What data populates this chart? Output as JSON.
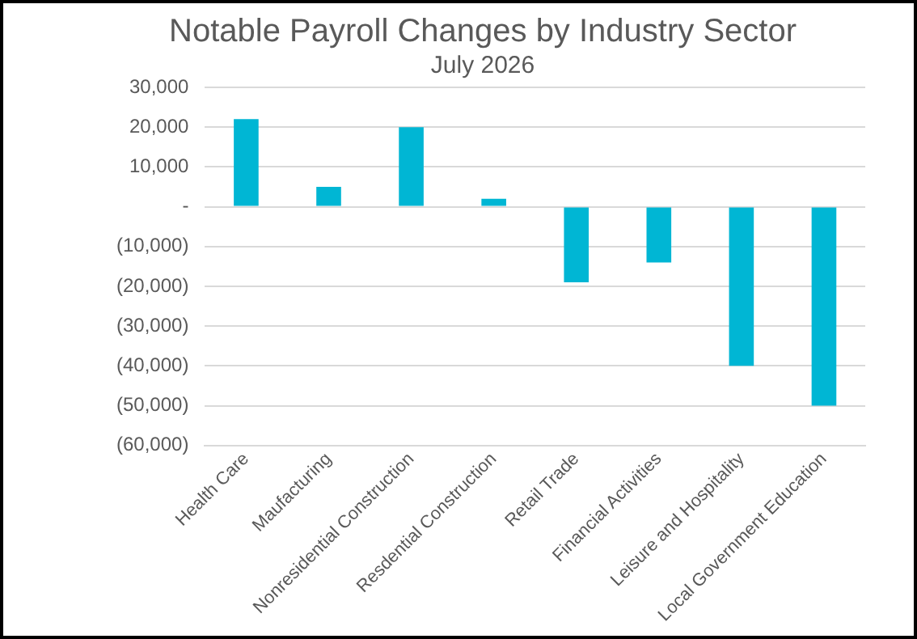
{
  "chart_data": {
    "type": "bar",
    "title": "Notable Payroll Changes by Industry Sector",
    "subtitle": "July 2026",
    "categories": [
      "Health Care",
      "Maufacturing",
      "Nonresidential Construction",
      "Resdential Construction",
      "Retail Trade",
      "Financial Activities",
      "Leisure and Hospitality",
      "Local Government Education"
    ],
    "values": [
      22000,
      5000,
      20000,
      2000,
      -19000,
      -14000,
      -40000,
      -50000
    ],
    "color": "#00b6d4",
    "ylim": [
      -60000,
      30000
    ],
    "yticks": [
      {
        "value": 30000,
        "label": "30,000"
      },
      {
        "value": 20000,
        "label": "20,000"
      },
      {
        "value": 10000,
        "label": "10,000"
      },
      {
        "value": 0,
        "label": "-"
      },
      {
        "value": -10000,
        "label": "(10,000)"
      },
      {
        "value": -20000,
        "label": "(20,000)"
      },
      {
        "value": -30000,
        "label": "(30,000)"
      },
      {
        "value": -40000,
        "label": "(40,000)"
      },
      {
        "value": -50000,
        "label": "(50,000)"
      },
      {
        "value": -60000,
        "label": "(60,000)"
      }
    ],
    "grid": "y"
  }
}
